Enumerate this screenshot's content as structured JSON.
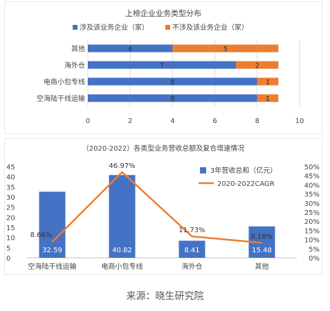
{
  "source": "来源：晓生研究院",
  "chart_data": [
    {
      "type": "bar",
      "orientation": "horizontal",
      "stacked": true,
      "title": "上榜企业业务类型分布",
      "categories": [
        "其他",
        "海外仓",
        "电商小包专线",
        "空海陆干线运输"
      ],
      "series": [
        {
          "name": "涉及该业务企业（家）",
          "values": [
            4,
            7,
            8,
            8
          ],
          "color": "#4472C4"
        },
        {
          "name": "不涉及该业务企业（家）",
          "values": [
            5,
            2,
            1,
            1
          ],
          "color": "#ED7D31"
        }
      ],
      "xlim": [
        0,
        10
      ],
      "xticks": [
        "0",
        "2",
        "4",
        "6",
        "8",
        "10"
      ],
      "legend_position": "top",
      "grid": true
    },
    {
      "type": "bar+line",
      "title": "（2020-2022）各类型业务营收总额及复合增速情况",
      "categories": [
        "空海陆干线运输",
        "电商小包专线",
        "海外仓",
        "其他"
      ],
      "series": [
        {
          "name": "3年营收总和（亿元）",
          "type": "bar",
          "axis": "left",
          "values": [
            32.59,
            40.82,
            8.41,
            15.48
          ],
          "labels": [
            "32.59",
            "40.82",
            "8.41",
            "15.48"
          ],
          "color": "#4472C4"
        },
        {
          "name": "2020-2022CAGR",
          "type": "line",
          "axis": "right",
          "values": [
            8.66,
            46.97,
            11.73,
            8.18
          ],
          "labels": [
            "8.66%",
            "46.97%",
            "11.73%",
            "8.18%"
          ],
          "color": "#ED7D31"
        }
      ],
      "ylim_left": [
        0,
        45
      ],
      "yticks_left": [
        "0",
        "5",
        "10",
        "15",
        "20",
        "25",
        "30",
        "35",
        "40",
        "45"
      ],
      "ylim_right": [
        0,
        50
      ],
      "yticks_right": [
        "0%",
        "5%",
        "10%",
        "15%",
        "20%",
        "25%",
        "30%",
        "35%",
        "40%",
        "45%",
        "50%"
      ],
      "legend_position": "top-right"
    }
  ]
}
